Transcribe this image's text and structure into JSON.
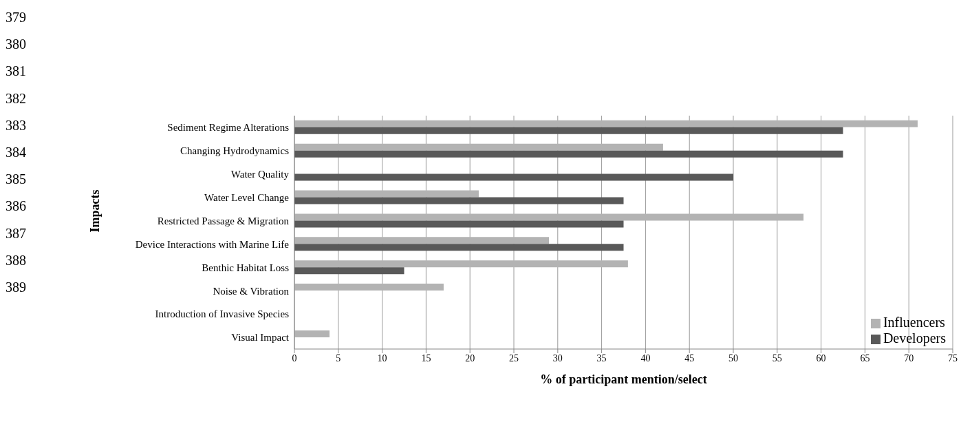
{
  "chart_data": {
    "type": "bar",
    "orientation": "horizontal",
    "xlabel": "% of participant mention/select",
    "ylabel": "Impacts",
    "categories": [
      "Sediment Regime Alterations",
      "Changing Hydrodynamics",
      "Water Quality",
      "Water Level Change",
      "Restricted Passage & Migration",
      "Device Interactions with Marine Life",
      "Benthic Habitat Loss",
      "Noise & Vibration",
      "Introduction of Invasive Species",
      "Visual Impact"
    ],
    "series": [
      {
        "name": "Influencers",
        "color": "#b3b3b3",
        "values": [
          71,
          42,
          0,
          21,
          58,
          29,
          38,
          17,
          0,
          4
        ]
      },
      {
        "name": "Developers",
        "color": "#595959",
        "values": [
          62.5,
          62.5,
          50,
          37.5,
          37.5,
          37.5,
          12.5,
          0,
          0,
          0
        ]
      }
    ],
    "xlim": [
      0,
      75
    ],
    "xticks": [
      0,
      5,
      10,
      15,
      20,
      25,
      30,
      35,
      40,
      45,
      50,
      55,
      60,
      65,
      70,
      75
    ],
    "grid": "x",
    "legend": "bottom right",
    "annotations": [
      "379",
      "380",
      "381",
      "382",
      "383",
      "384",
      "385",
      "386",
      "387",
      "388",
      "389"
    ]
  }
}
